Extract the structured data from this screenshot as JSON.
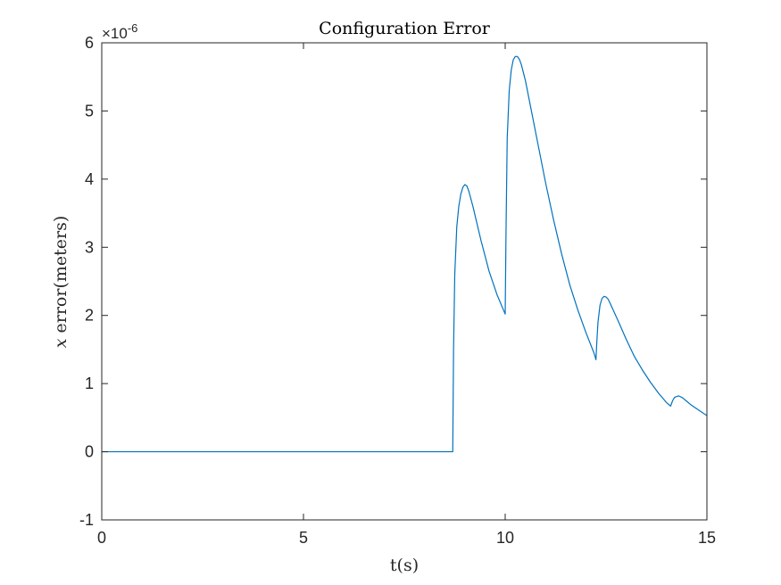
{
  "chart_data": {
    "type": "line",
    "title": "Configuration Error",
    "xlabel": "t(s)",
    "ylabel_var": "x",
    "ylabel_rest": "error(meters)",
    "y_multiplier": {
      "base": "×10",
      "exponent": "-6"
    },
    "xlim": [
      0,
      15
    ],
    "ylim": [
      -1,
      6
    ],
    "xticks": [
      0,
      5,
      10,
      15
    ],
    "yticks": [
      -1,
      0,
      1,
      2,
      3,
      4,
      5,
      6
    ],
    "xtick_labels": [
      "0",
      "5",
      "10",
      "15"
    ],
    "ytick_labels": [
      "-1",
      "0",
      "1",
      "2",
      "3",
      "4",
      "5",
      "6"
    ],
    "grid": false,
    "legend": "none",
    "line_color": "#0072BD",
    "series": [
      {
        "x": [
          0,
          2,
          4,
          6,
          8,
          8.7,
          8.72,
          8.75,
          8.8,
          8.85,
          8.9,
          8.95,
          9.0,
          9.05,
          9.1,
          9.2,
          9.4,
          9.6,
          9.8,
          10.0,
          10.02,
          10.05,
          10.1,
          10.15,
          10.2,
          10.25,
          10.3,
          10.35,
          10.4,
          10.5,
          10.6,
          10.8,
          11.0,
          11.2,
          11.4,
          11.6,
          11.8,
          12.0,
          12.2,
          12.25,
          12.27,
          12.3,
          12.35,
          12.4,
          12.45,
          12.5,
          12.55,
          12.6,
          12.8,
          13.0,
          13.2,
          13.4,
          13.6,
          13.8,
          14.0,
          14.1,
          14.15,
          14.2,
          14.3,
          14.4,
          14.5,
          14.6,
          14.8,
          15.0
        ],
        "y": [
          0,
          0,
          0,
          0,
          0,
          0,
          1.5,
          2.6,
          3.3,
          3.6,
          3.78,
          3.88,
          3.92,
          3.9,
          3.82,
          3.6,
          3.1,
          2.65,
          2.3,
          2.02,
          3.2,
          4.6,
          5.3,
          5.6,
          5.75,
          5.8,
          5.8,
          5.76,
          5.68,
          5.45,
          5.15,
          4.55,
          3.95,
          3.4,
          2.9,
          2.45,
          2.08,
          1.75,
          1.45,
          1.35,
          1.6,
          1.9,
          2.15,
          2.25,
          2.28,
          2.27,
          2.24,
          2.18,
          1.92,
          1.65,
          1.4,
          1.2,
          1.02,
          0.86,
          0.72,
          0.67,
          0.75,
          0.8,
          0.82,
          0.79,
          0.74,
          0.69,
          0.61,
          0.53
        ]
      }
    ]
  }
}
